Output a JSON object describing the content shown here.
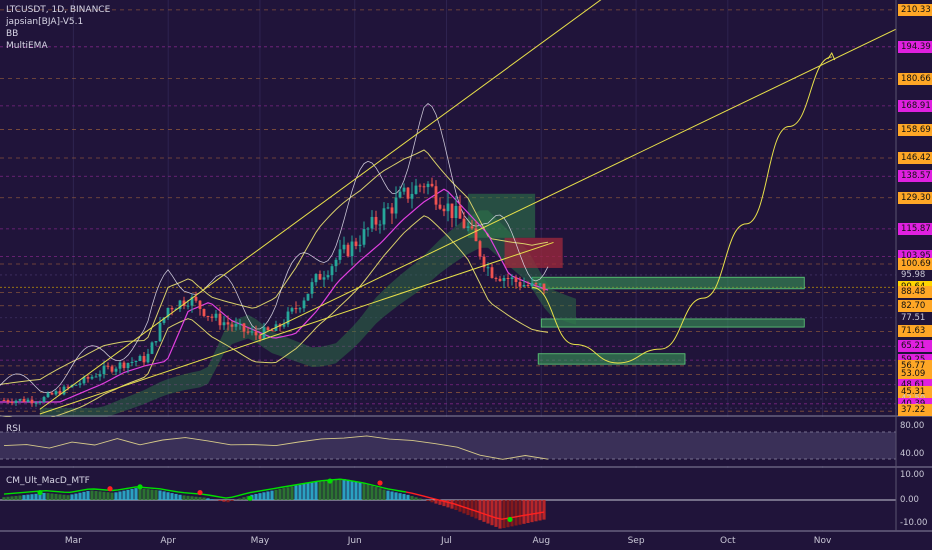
{
  "header": {
    "symbol_line": "LTCUSDT, 1D, BINANCE",
    "indicators": [
      "japsian[BJA]-V5.1",
      "BB",
      "MultiEMA"
    ]
  },
  "colors": {
    "background": "#20143a",
    "magenta": "#e020e0",
    "orange": "#ffa726",
    "yellow_line": "#e8e04a",
    "up_candle": "#26a69a",
    "down_candle": "#ef5350",
    "ichimoku_green": "#2e7d4a",
    "ichimoku_red": "#a0283c",
    "target_box": "#3aa35a"
  },
  "chart_data": [
    {
      "type": "candlestick",
      "title": "LTCUSDT, 1D, BINANCE",
      "xlabel": "",
      "ylabel": "",
      "x_ticks": [
        "Mar",
        "Apr",
        "May",
        "Jun",
        "Jul",
        "Aug",
        "Sep",
        "Oct",
        "Nov"
      ],
      "ylim": [
        36,
        212
      ],
      "price_levels": [
        {
          "label": "210.33",
          "value": 210.33,
          "color": "orange"
        },
        {
          "label": "194.39",
          "value": 194.39,
          "color": "magenta"
        },
        {
          "label": "180.66",
          "value": 180.66,
          "color": "orange"
        },
        {
          "label": "168.91",
          "value": 168.91,
          "color": "magenta"
        },
        {
          "label": "158.69",
          "value": 158.69,
          "color": "orange"
        },
        {
          "label": "146.42",
          "value": 146.42,
          "color": "orange"
        },
        {
          "label": "138.57",
          "value": 138.57,
          "color": "magenta"
        },
        {
          "label": "129.30",
          "value": 129.3,
          "color": "orange"
        },
        {
          "label": "115.87",
          "value": 115.87,
          "color": "magenta"
        },
        {
          "label": "103.95",
          "value": 103.95,
          "color": "magenta"
        },
        {
          "label": "100.69",
          "value": 100.69,
          "color": "orange"
        },
        {
          "label": "95.98",
          "value": 95.98,
          "color": "plain"
        },
        {
          "label": "90.64",
          "value": 90.64,
          "color": "current"
        },
        {
          "label": "88.48",
          "value": 88.48,
          "color": "orange"
        },
        {
          "label": "82.70",
          "value": 82.7,
          "color": "orange"
        },
        {
          "label": "77.51",
          "value": 77.51,
          "color": "plain"
        },
        {
          "label": "71.63",
          "value": 71.63,
          "color": "orange"
        },
        {
          "label": "65.21",
          "value": 65.21,
          "color": "magenta"
        },
        {
          "label": "59.25",
          "value": 59.25,
          "color": "magenta"
        },
        {
          "label": "56.77",
          "value": 56.77,
          "color": "orange"
        },
        {
          "label": "53.09",
          "value": 53.09,
          "color": "orange"
        },
        {
          "label": "48.61",
          "value": 48.61,
          "color": "magenta"
        },
        {
          "label": "45.31",
          "value": 45.31,
          "color": "orange"
        },
        {
          "label": "42.50",
          "value": 42.5,
          "color": "plain"
        },
        {
          "label": "40.39",
          "value": 40.39,
          "color": "magenta"
        },
        {
          "label": "38.50",
          "value": 38.5,
          "color": "plain"
        },
        {
          "label": "37.22",
          "value": 37.22,
          "color": "orange"
        }
      ],
      "close_path": [
        [
          "2019-02-18",
          42
        ],
        [
          "2019-02-25",
          46
        ],
        [
          "2019-03-04",
          50
        ],
        [
          "2019-03-11",
          55
        ],
        [
          "2019-03-18",
          58
        ],
        [
          "2019-03-25",
          60
        ],
        [
          "2019-04-01",
          82
        ],
        [
          "2019-04-08",
          86
        ],
        [
          "2019-04-15",
          78
        ],
        [
          "2019-04-22",
          74
        ],
        [
          "2019-04-29",
          70
        ],
        [
          "2019-05-06",
          72
        ],
        [
          "2019-05-13",
          82
        ],
        [
          "2019-05-20",
          95
        ],
        [
          "2019-05-27",
          104
        ],
        [
          "2019-06-03",
          112
        ],
        [
          "2019-06-10",
          122
        ],
        [
          "2019-06-17",
          130
        ],
        [
          "2019-06-24",
          136
        ],
        [
          "2019-07-01",
          126
        ],
        [
          "2019-07-08",
          116
        ],
        [
          "2019-07-15",
          98
        ],
        [
          "2019-07-22",
          94
        ],
        [
          "2019-07-29",
          90.64
        ]
      ],
      "projection_path": [
        [
          "2019-07-29",
          90.64
        ],
        [
          "2019-08-12",
          66
        ],
        [
          "2019-08-26",
          58
        ],
        [
          "2019-09-09",
          64
        ],
        [
          "2019-09-23",
          86
        ],
        [
          "2019-10-07",
          118
        ],
        [
          "2019-10-21",
          160
        ],
        [
          "2019-11-04",
          190
        ]
      ],
      "target_zones": [
        {
          "from": "2019-07-29",
          "to": "2019-10-26",
          "low": 90,
          "high": 95
        },
        {
          "from": "2019-08-01",
          "to": "2019-10-26",
          "low": 73.5,
          "high": 77
        },
        {
          "from": "2019-07-31",
          "to": "2019-09-17",
          "low": 57.5,
          "high": 62
        }
      ]
    },
    {
      "type": "line",
      "title": "RSI",
      "xlabel": "",
      "ylabel": "",
      "y_ticks": [
        "80.00",
        "40.00"
      ],
      "ylim": [
        30,
        92
      ],
      "series": [
        {
          "values": [
            59,
            62,
            58,
            65,
            61,
            70,
            63,
            67,
            72,
            66,
            60,
            63,
            58,
            64,
            68,
            72,
            75,
            70,
            66,
            62,
            56,
            46,
            40,
            44,
            41
          ]
        }
      ]
    },
    {
      "type": "bar",
      "title": "CM_Ult_MacD_MTF",
      "xlabel": "",
      "ylabel": "",
      "y_ticks": [
        "10.00",
        "0.00",
        "-10.00"
      ],
      "ylim": [
        -14,
        14
      ],
      "series": [
        {
          "values": [
            1,
            2,
            3,
            2,
            4,
            3,
            5,
            4,
            2,
            1,
            -1,
            2,
            4,
            6,
            8,
            9,
            7,
            4,
            2,
            -1,
            -4,
            -8,
            -12,
            -10,
            -8
          ]
        }
      ]
    }
  ]
}
